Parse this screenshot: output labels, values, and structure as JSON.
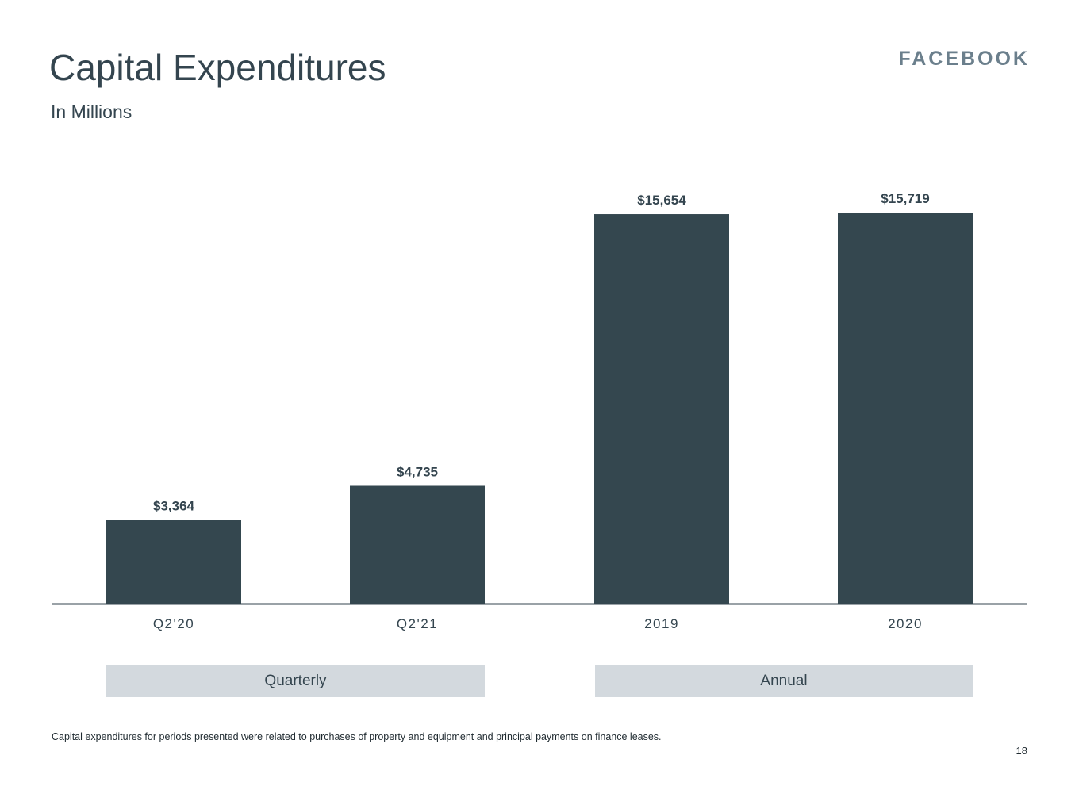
{
  "header": {
    "title": "Capital Expenditures",
    "subtitle": "In Millions",
    "logo_text": "FACEBOOK"
  },
  "chart_data": {
    "type": "bar",
    "title": "Capital Expenditures",
    "subtitle": "In Millions",
    "categories": [
      "Q2'20",
      "Q2'21",
      "2019",
      "2020"
    ],
    "values": [
      3364,
      4735,
      15654,
      15719
    ],
    "value_labels": [
      "$3,364",
      "$4,735",
      "$15,654",
      "$15,719"
    ],
    "groups": [
      {
        "label": "Quarterly",
        "categories": [
          "Q2'20",
          "Q2'21"
        ]
      },
      {
        "label": "Annual",
        "categories": [
          "2019",
          "2020"
        ]
      }
    ],
    "xlabel": "",
    "ylabel": "",
    "ylim": [
      0,
      15719
    ],
    "grid": false,
    "bar_color": "#34474f"
  },
  "footer": {
    "footnote": "Capital expenditures for periods presented were related to purchases of property and equipment and principal payments on finance leases.",
    "page_number": "18"
  },
  "colors": {
    "text": "#34454f",
    "bar": "#34474f",
    "group_box": "#d3d9de",
    "logo": "#6b7f8c"
  }
}
